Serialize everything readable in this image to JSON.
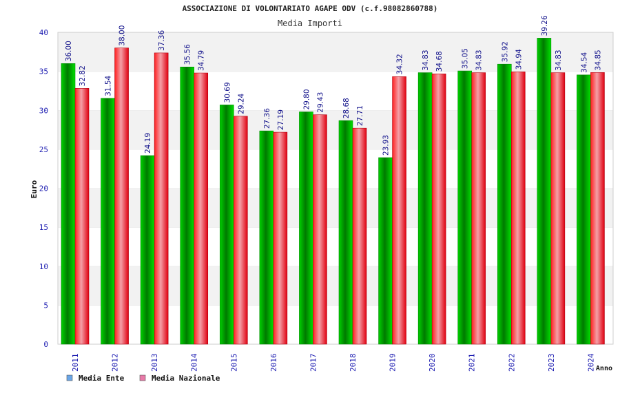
{
  "chart_data": {
    "type": "bar",
    "title": "ASSOCIAZIONE DI VOLONTARIATO AGAPE ODV (c.f.98082860788)",
    "subtitle": "Media Importi",
    "xlabel": "Anno",
    "ylabel": "Euro",
    "ylim": [
      0,
      40
    ],
    "yticks": [
      "0",
      "5",
      "10",
      "15",
      "20",
      "25",
      "30",
      "35",
      "40"
    ],
    "grid": "horizontal bands",
    "legend_position": "bottom-left",
    "categories": [
      "2011",
      "2012",
      "2013",
      "2014",
      "2015",
      "2016",
      "2017",
      "2018",
      "2019",
      "2020",
      "2021",
      "2022",
      "2023",
      "2024"
    ],
    "series": [
      {
        "name": "Media Ente",
        "color": "#00c000",
        "values": [
          36.0,
          31.54,
          24.19,
          35.56,
          30.69,
          27.36,
          29.8,
          28.68,
          23.93,
          34.83,
          35.05,
          35.92,
          39.26,
          34.54
        ],
        "labels": [
          "36.00",
          "31.54",
          "24.19",
          "35.56",
          "30.69",
          "27.36",
          "29.80",
          "28.68",
          "23.93",
          "34.83",
          "35.05",
          "35.92",
          "39.26",
          "34.54"
        ]
      },
      {
        "name": "Media Nazionale",
        "color": "#e8202a",
        "values": [
          32.82,
          38.0,
          37.36,
          34.79,
          29.24,
          27.19,
          29.43,
          27.71,
          34.32,
          34.68,
          34.83,
          34.94,
          34.83,
          34.85
        ],
        "labels": [
          "32.82",
          "38.00",
          "37.36",
          "34.79",
          "29.24",
          "27.19",
          "29.43",
          "27.71",
          "34.32",
          "34.68",
          "34.83",
          "34.94",
          "34.83",
          "34.85"
        ]
      }
    ],
    "legend_colors": [
      "#6aa6e8",
      "#e87aa8"
    ]
  }
}
